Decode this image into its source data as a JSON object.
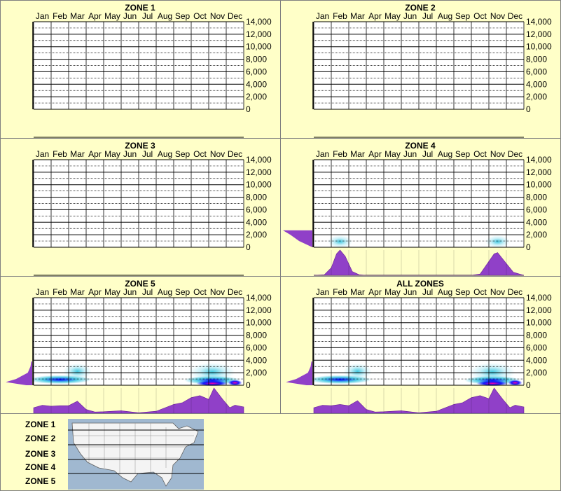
{
  "months": [
    "Jan",
    "Feb",
    "Mar",
    "Apr",
    "May",
    "Jun",
    "Jul",
    "Aug",
    "Sep",
    "Oct",
    "Nov",
    "Dec"
  ],
  "y_ticks": [
    "14,000",
    "12,000",
    "10,000",
    "8,000",
    "6,000",
    "4,000",
    "2,000",
    "0"
  ],
  "legend": {
    "zones": [
      "ZONE 1",
      "ZONE 2",
      "ZONE 3",
      "ZONE 4",
      "ZONE 5"
    ],
    "map_icon": "us-map-icon"
  },
  "colors": {
    "background": "#ffffc8",
    "profile": "#9040c8",
    "density_low": "#c8f0f8",
    "density_mid": "#40c8e0",
    "density_high": "#0000ff",
    "density_peak": "#ff00a0"
  },
  "chart_data": [
    {
      "type": "heatmap",
      "title": "ZONE 1",
      "ylim": [
        0,
        14000
      ],
      "month_profile": [],
      "elevation_profile": [],
      "hotspots": []
    },
    {
      "type": "heatmap",
      "title": "ZONE 2",
      "ylim": [
        0,
        14000
      ],
      "month_profile": [],
      "elevation_profile": [],
      "hotspots": []
    },
    {
      "type": "heatmap",
      "title": "ZONE 3",
      "ylim": [
        0,
        14000
      ],
      "month_profile": [],
      "elevation_profile": [],
      "hotspots": []
    },
    {
      "type": "heatmap",
      "title": "ZONE 4",
      "ylim": [
        0,
        14000
      ],
      "month_profile": [
        [
          0,
          0
        ],
        [
          0.6,
          0.02
        ],
        [
          1,
          0.3
        ],
        [
          1.3,
          0.85
        ],
        [
          1.5,
          1.0
        ],
        [
          1.8,
          0.75
        ],
        [
          2.2,
          0.15
        ],
        [
          2.6,
          0.02
        ],
        [
          3,
          0
        ],
        [
          9,
          0
        ],
        [
          9.5,
          0.05
        ],
        [
          10,
          0.55
        ],
        [
          10.3,
          0.85
        ],
        [
          10.5,
          0.9
        ],
        [
          10.9,
          0.55
        ],
        [
          11.4,
          0.12
        ],
        [
          12,
          0
        ]
      ],
      "elevation_profile": [
        [
          0,
          0.0
        ],
        [
          1000,
          0.45
        ],
        [
          2000,
          0.75
        ],
        [
          2700,
          1.0
        ]
      ],
      "hotspots": [
        {
          "month": 1.5,
          "elev": 900,
          "rx": 0.7,
          "ry": 1000,
          "level": 1
        },
        {
          "month": 10.5,
          "elev": 900,
          "rx": 0.7,
          "ry": 1000,
          "level": 1
        }
      ]
    },
    {
      "type": "heatmap",
      "title": "ZONE 5",
      "ylim": [
        0,
        14000
      ],
      "month_profile": [
        [
          0,
          0.22
        ],
        [
          0.5,
          0.32
        ],
        [
          1,
          0.28
        ],
        [
          1.5,
          0.3
        ],
        [
          2,
          0.3
        ],
        [
          2.5,
          0.48
        ],
        [
          3,
          0.15
        ],
        [
          3.5,
          0.05
        ],
        [
          4,
          0.06
        ],
        [
          5,
          0.1
        ],
        [
          6,
          0.02
        ],
        [
          7,
          0.08
        ],
        [
          8,
          0.35
        ],
        [
          8.5,
          0.42
        ],
        [
          9,
          0.62
        ],
        [
          9.5,
          0.7
        ],
        [
          10,
          0.55
        ],
        [
          10.3,
          1.0
        ],
        [
          10.8,
          0.55
        ],
        [
          11.2,
          0.22
        ],
        [
          11.5,
          0.32
        ],
        [
          12,
          0.25
        ]
      ],
      "elevation_profile": [
        [
          0,
          0.2
        ],
        [
          500,
          0.9
        ],
        [
          1000,
          0.55
        ],
        [
          2000,
          0.15
        ],
        [
          3000,
          0.06
        ],
        [
          3800,
          0.03
        ]
      ],
      "hotspots": [
        {
          "month": 2.5,
          "elev": 2200,
          "rx": 0.8,
          "ry": 1300,
          "level": 1
        },
        {
          "month": 1.5,
          "elev": 900,
          "rx": 1.8,
          "ry": 700,
          "level": 2
        },
        {
          "month": 10.2,
          "elev": 2100,
          "rx": 1.3,
          "ry": 1500,
          "level": 1
        },
        {
          "month": 10.2,
          "elev": 800,
          "rx": 1.6,
          "ry": 700,
          "level": 2
        },
        {
          "month": 10.2,
          "elev": 300,
          "rx": 0.9,
          "ry": 400,
          "level": 3
        },
        {
          "month": 11.5,
          "elev": 400,
          "rx": 0.4,
          "ry": 400,
          "level": 3
        }
      ]
    },
    {
      "type": "heatmap",
      "title": "ALL ZONES",
      "ylim": [
        0,
        14000
      ],
      "month_profile": [
        [
          0,
          0.22
        ],
        [
          0.5,
          0.32
        ],
        [
          1,
          0.3
        ],
        [
          1.5,
          0.35
        ],
        [
          2,
          0.3
        ],
        [
          2.5,
          0.5
        ],
        [
          3,
          0.15
        ],
        [
          3.5,
          0.05
        ],
        [
          4,
          0.06
        ],
        [
          5,
          0.1
        ],
        [
          6,
          0.02
        ],
        [
          7,
          0.08
        ],
        [
          8,
          0.35
        ],
        [
          8.5,
          0.42
        ],
        [
          9,
          0.62
        ],
        [
          9.5,
          0.7
        ],
        [
          10,
          0.58
        ],
        [
          10.3,
          1.0
        ],
        [
          10.8,
          0.55
        ],
        [
          11.2,
          0.22
        ],
        [
          11.5,
          0.32
        ],
        [
          12,
          0.25
        ]
      ],
      "elevation_profile": [
        [
          0,
          0.2
        ],
        [
          500,
          0.9
        ],
        [
          1000,
          0.55
        ],
        [
          2000,
          0.15
        ],
        [
          3000,
          0.06
        ],
        [
          3800,
          0.03
        ]
      ],
      "hotspots": [
        {
          "month": 2.5,
          "elev": 2200,
          "rx": 0.8,
          "ry": 1300,
          "level": 1
        },
        {
          "month": 1.5,
          "elev": 900,
          "rx": 1.8,
          "ry": 700,
          "level": 2
        },
        {
          "month": 10.2,
          "elev": 2100,
          "rx": 1.3,
          "ry": 1500,
          "level": 1
        },
        {
          "month": 10.2,
          "elev": 800,
          "rx": 1.6,
          "ry": 700,
          "level": 2
        },
        {
          "month": 10.2,
          "elev": 300,
          "rx": 0.9,
          "ry": 400,
          "level": 3
        },
        {
          "month": 11.5,
          "elev": 400,
          "rx": 0.4,
          "ry": 400,
          "level": 3
        }
      ]
    }
  ]
}
